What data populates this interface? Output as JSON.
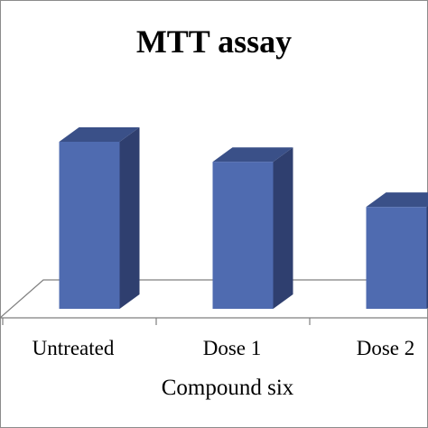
{
  "chart_data": {
    "type": "bar",
    "title": "MTT assay",
    "xlabel": "Compound six",
    "ylabel": "",
    "categories": [
      "Untreated",
      "Dose 1",
      "Dose 2"
    ],
    "values": [
      100,
      88,
      61
    ],
    "ylim": [
      0,
      110
    ],
    "grid": false,
    "legend": "none",
    "style": "3d-column"
  },
  "colors": {
    "bar_front": "#4f6bb0",
    "bar_side": "#2f3f6f",
    "bar_top": "#3a5088",
    "axis": "#7f7f7f",
    "frame": "#8c8c8c"
  }
}
